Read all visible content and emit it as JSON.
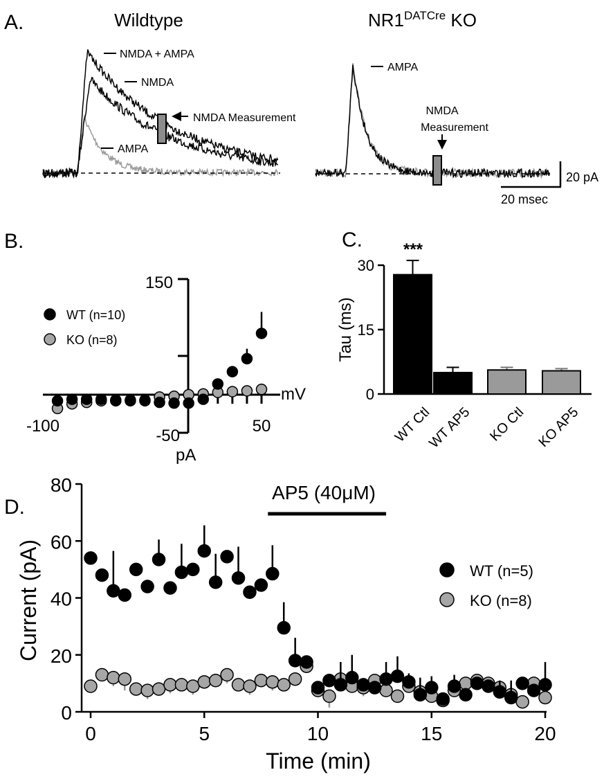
{
  "panel_a": {
    "letter": "A.",
    "wt_title": "Wildtype",
    "ko_title_main": "NR1",
    "ko_title_sup": "DATCre",
    "ko_title_end": " KO",
    "wt_labels": {
      "nmda_ampa": "NMDA + AMPA",
      "nmda": "NMDA",
      "ampa": "AMPA",
      "measurement": "NMDA Measurement"
    },
    "ko_labels": {
      "ampa": "AMPA",
      "measurement_line1": "NMDA",
      "measurement_line2": "Measurement"
    },
    "scalebar": {
      "amplitude": "20 pA",
      "time": "20 msec"
    },
    "colors": {
      "wt_trace": "#000000",
      "ko_trace": "#999999",
      "measure_box": "#8c8c8c"
    }
  },
  "chart_data": [
    {
      "panel": "B.",
      "type": "scatter",
      "xlabel": "mV",
      "ylabel": "pA",
      "xlim": [
        -100,
        50
      ],
      "ylim": [
        -50,
        150
      ],
      "x_ticks": [
        "-100",
        "50"
      ],
      "y_ticks": [
        "150",
        "-50"
      ],
      "series": [
        {
          "name": "WT (n=10)",
          "color": "#000000",
          "x": [
            -90,
            -80,
            -70,
            -60,
            -50,
            -40,
            -30,
            -20,
            -10,
            0,
            10,
            20,
            30,
            40,
            50
          ],
          "y": [
            -8,
            -6,
            -6,
            -6,
            -7,
            -7,
            -8,
            -10,
            -11,
            -11,
            -6,
            14,
            30,
            47,
            80
          ],
          "err": [
            0,
            0,
            0,
            0,
            0,
            0,
            0,
            0,
            0,
            0,
            0,
            0,
            0,
            13,
            28
          ]
        },
        {
          "name": "KO (n=8)",
          "color": "#a6a6a6",
          "x": [
            -90,
            -80,
            -70,
            -60,
            -50,
            -40,
            -30,
            -20,
            -10,
            0,
            10,
            20,
            30,
            40,
            50
          ],
          "y": [
            -18,
            -12,
            -10,
            -8,
            -8,
            -8,
            -7,
            -3,
            -2,
            0,
            1,
            3,
            4,
            5,
            7
          ],
          "err": [
            0,
            0,
            0,
            0,
            0,
            0,
            0,
            0,
            0,
            0,
            0,
            0,
            0,
            0,
            0
          ]
        }
      ]
    },
    {
      "panel": "C.",
      "type": "bar",
      "ylabel": "Tau (ms)",
      "ylim": [
        0,
        30
      ],
      "y_ticks": [
        0,
        15,
        30
      ],
      "categories": [
        "WT Ctl",
        "WT AP5",
        "KO Ctl",
        "KO AP5"
      ],
      "values": [
        27.8,
        5.0,
        5.6,
        5.4
      ],
      "errors": [
        3.3,
        1.2,
        0.6,
        0.5
      ],
      "colors": [
        "#000000",
        "#000000",
        "#9a9a9a",
        "#9a9a9a"
      ],
      "annotation": "***"
    },
    {
      "panel": "D.",
      "type": "scatter",
      "xlabel": "Time (min)",
      "ylabel": "Current (pA)",
      "xlim": [
        0,
        20
      ],
      "ylim": [
        0,
        80
      ],
      "x_ticks": [
        0,
        5,
        10,
        15,
        20
      ],
      "y_ticks": [
        0,
        20,
        40,
        60,
        80
      ],
      "drug_bar": {
        "label": "AP5 (40μM)",
        "start": 7.8,
        "end": 13
      },
      "series": [
        {
          "name": "WT (n=5)",
          "color": "#000000",
          "x": [
            0,
            0.5,
            1,
            1.5,
            2,
            2.5,
            3,
            3.5,
            4,
            4.5,
            5,
            5.5,
            6,
            6.5,
            7,
            7.5,
            8,
            8.5,
            9,
            9.5,
            10,
            10.5,
            11,
            11.5,
            12,
            12.5,
            13,
            13.5,
            14,
            14.5,
            15,
            15.5,
            16,
            16.5,
            17,
            17.5,
            18,
            18.5,
            19,
            19.5,
            20
          ],
          "y": [
            54,
            48,
            42.5,
            41,
            50,
            44,
            53.5,
            43.5,
            49,
            50,
            56.5,
            45.5,
            54.5,
            47,
            42,
            44.5,
            48.5,
            29.5,
            18,
            17.5,
            8.5,
            11,
            9.5,
            12,
            9.5,
            8.5,
            11.5,
            12.5,
            10.5,
            6,
            8.5,
            4.5,
            9,
            6,
            10,
            9,
            7,
            5,
            10,
            7.5,
            9.5
          ],
          "err": [
            0,
            0,
            14,
            0,
            0,
            0,
            7,
            0,
            10,
            0,
            9,
            10,
            0,
            11,
            0,
            0,
            10,
            9,
            8,
            0,
            0,
            0,
            8,
            8,
            0,
            0,
            6,
            7,
            3,
            6,
            4,
            0,
            4,
            0,
            0,
            0,
            4,
            6,
            0,
            0,
            8
          ]
        },
        {
          "name": "KO (n=8)",
          "color": "#a6a6a6",
          "x": [
            0,
            0.5,
            1,
            1.5,
            2,
            2.5,
            3,
            3.5,
            4,
            4.5,
            5,
            5.5,
            6,
            6.5,
            7,
            7.5,
            8,
            8.5,
            9,
            9.5,
            10,
            10.5,
            11,
            11.5,
            12,
            12.5,
            13,
            13.5,
            14,
            14.5,
            15,
            15.5,
            16,
            16.5,
            17,
            17.5,
            18,
            18.5,
            19,
            19.5,
            20
          ],
          "y": [
            9,
            13,
            12,
            11.5,
            8,
            7.5,
            8,
            9.5,
            9.5,
            9,
            10.5,
            11,
            13,
            9.5,
            9,
            11,
            10.5,
            9.5,
            11.5,
            16,
            7.5,
            5.5,
            11.5,
            9,
            8.5,
            11,
            7.5,
            5.5,
            9,
            7,
            5.5,
            4,
            7.5,
            10,
            11,
            10,
            8.5,
            6,
            3.5,
            10,
            5
          ],
          "err": [
            0,
            0,
            3,
            4,
            0,
            3,
            0,
            3,
            0,
            3,
            0,
            0,
            3,
            0,
            3,
            0,
            3,
            0,
            0,
            0,
            0,
            4,
            0,
            0,
            3,
            0,
            0,
            0,
            0,
            0,
            0,
            0,
            0,
            0,
            0,
            0,
            0,
            0,
            0,
            0,
            0
          ]
        }
      ]
    }
  ]
}
